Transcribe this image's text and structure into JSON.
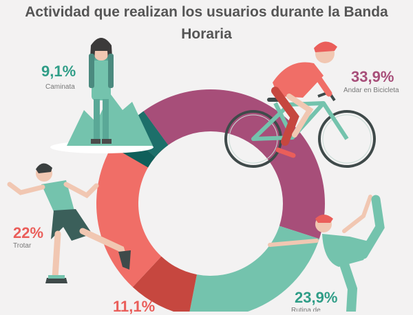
{
  "title_line1": "Actividad que realizan los usuarios durante la Banda",
  "title_line2": "Horaria",
  "colors": {
    "andar_en_bicicleta": "#a74e79",
    "rutina_de_ejercicios": "#74c3ad",
    "unlabeled_dark_red": "#c6473f",
    "trotar": "#f06e67",
    "unlabeled_dark_teal": "#1d6f6a",
    "caminata": "#0f5f5a",
    "pct_teal": "#2f9d87",
    "pct_red": "#ea5e5a",
    "pct_purple": "#a74e79",
    "title": "#555555"
  },
  "chart_data": {
    "type": "pie",
    "title": "Actividad que realizan los usuarios durante la Banda Horaria",
    "slices": [
      {
        "label": "Andar en Bicicleta",
        "value_label": "33,9%",
        "value": 33.9,
        "color": "#a74e79"
      },
      {
        "label": "Rutina de Ejercicios",
        "value_label": "23,9%",
        "value": 23.9,
        "color": "#74c3ad"
      },
      {
        "label": "",
        "value_label": "11,1%",
        "value": 11.1,
        "color": "#c6473f"
      },
      {
        "label": "Trotar",
        "value_label": "22%",
        "value": 22,
        "color": "#f06e67"
      },
      {
        "label": "",
        "value_label": "",
        "value": 0,
        "color": "#1d6f6a"
      },
      {
        "label": "Caminata",
        "value_label": "9,1%",
        "value": 9.1,
        "color": "#0f5f5a"
      }
    ]
  }
}
